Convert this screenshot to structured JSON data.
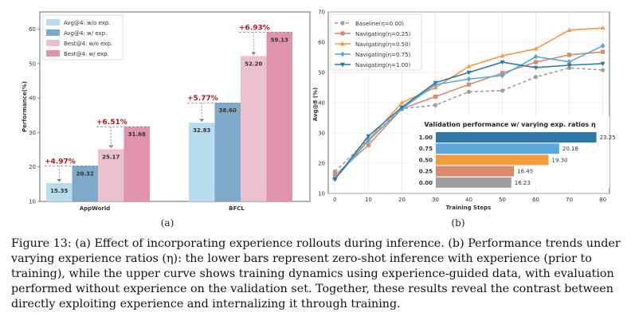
{
  "panel_a_label": "(a)",
  "panel_b_label": "(b)",
  "caption": "Figure 13: (a) Effect of incorporating experience rollouts during inference. (b) Performance trends under varying experience ratios (η): the lower bars represent zero-shot inference with experience (prior to training), while the upper curve shows training dynamics using experience-guided data, with evaluation performed without experience on the validation set. Together, these results reveal the contrast between directly exploiting experience and internalizing it through training.",
  "colors": {
    "avg_wo": "#b7dced",
    "avg_w": "#7fa9c8",
    "best_wo": "#eac1cc",
    "best_w": "#e093aa",
    "gain": "#b01818",
    "inset_bars": [
      "#2f79a8",
      "#5aaad9",
      "#f39c3c",
      "#d88a6a",
      "#9e9e9e"
    ]
  },
  "chart_data": [
    {
      "type": "bar",
      "ylabel": "Performance(%)",
      "xlabel": "",
      "ylim": [
        10,
        65
      ],
      "yticks": [
        10,
        20,
        30,
        40,
        50,
        60
      ],
      "categories": [
        "AppWorld",
        "BFCL"
      ],
      "series": [
        {
          "name": "Avg@4:  w/o exp.",
          "values": [
            15.35,
            32.83
          ],
          "labels": [
            "15.35",
            "32.83"
          ]
        },
        {
          "name": "Avg@4:  w/ exp.",
          "values": [
            20.32,
            38.6
          ],
          "labels": [
            "20.32",
            "38.60"
          ]
        },
        {
          "name": "Best@4: w/o exp.",
          "values": [
            25.17,
            52.2
          ],
          "labels": [
            "25.17",
            "52.20"
          ]
        },
        {
          "name": "Best@4: w/ exp.",
          "values": [
            31.68,
            59.13
          ],
          "labels": [
            "31.68",
            "59.13"
          ]
        }
      ],
      "gains": [
        {
          "category": "AppWorld",
          "pair": "avg",
          "label": "+4.97%"
        },
        {
          "category": "AppWorld",
          "pair": "best",
          "label": "+6.51%"
        },
        {
          "category": "BFCL",
          "pair": "avg",
          "label": "+5.77%"
        },
        {
          "category": "BFCL",
          "pair": "best",
          "label": "+6.93%"
        }
      ],
      "legend": "top-left"
    },
    {
      "type": "line",
      "xlabel": "Training Steps",
      "ylabel": "Avg@8 (%)",
      "x": [
        0,
        10,
        20,
        30,
        40,
        50,
        60,
        70,
        80
      ],
      "xticks": [
        0,
        10,
        20,
        30,
        40,
        50,
        60,
        70,
        80
      ],
      "yticks": [
        10,
        20,
        30,
        40,
        50,
        60,
        70
      ],
      "ylim": [
        10,
        70
      ],
      "xlim": [
        -2,
        82
      ],
      "series": [
        {
          "name": "Baseline(η=0.00)",
          "color": "#9e9e9e",
          "marker": "circle",
          "dashed": true,
          "values": [
            17.2,
            28.0,
            38.0,
            39.2,
            43.6,
            44.0,
            48.5,
            51.5,
            50.8
          ]
        },
        {
          "name": "Navigating(η=0.25)",
          "color": "#d98a6c",
          "marker": "square",
          "dashed": false,
          "values": [
            16.0,
            26.0,
            38.0,
            42.0,
            46.0,
            49.8,
            53.4,
            55.8,
            56.8
          ]
        },
        {
          "name": "Navigating(η=0.50)",
          "color": "#f39a3c",
          "marker": "triangle",
          "dashed": false,
          "values": [
            15.0,
            27.8,
            40.0,
            45.0,
            52.0,
            55.5,
            57.8,
            64.0,
            64.7
          ]
        },
        {
          "name": "Navigating(η=0.75)",
          "color": "#5aaad9",
          "marker": "diamond",
          "dashed": false,
          "values": [
            14.8,
            27.5,
            38.0,
            46.0,
            47.8,
            49.0,
            55.2,
            53.5,
            58.8
          ]
        },
        {
          "name": "Navigating(η=1.00)",
          "color": "#2f79a8",
          "marker": "tri_down",
          "dashed": false,
          "values": [
            14.7,
            29.0,
            38.5,
            46.6,
            50.0,
            53.4,
            51.6,
            52.4,
            52.9
          ]
        }
      ],
      "legend": "top-left",
      "inset": {
        "type": "bar",
        "orientation": "horizontal",
        "title": "Validation performance w/ varying exp. ratios η",
        "categories": [
          "1.00",
          "0.75",
          "0.50",
          "0.25",
          "0.00"
        ],
        "values": [
          23.25,
          20.18,
          19.3,
          16.45,
          16.23
        ],
        "labels": [
          "23.25",
          "20.18",
          "19.30",
          "16.45",
          "16.23"
        ],
        "xlim": [
          10,
          24
        ]
      }
    }
  ]
}
